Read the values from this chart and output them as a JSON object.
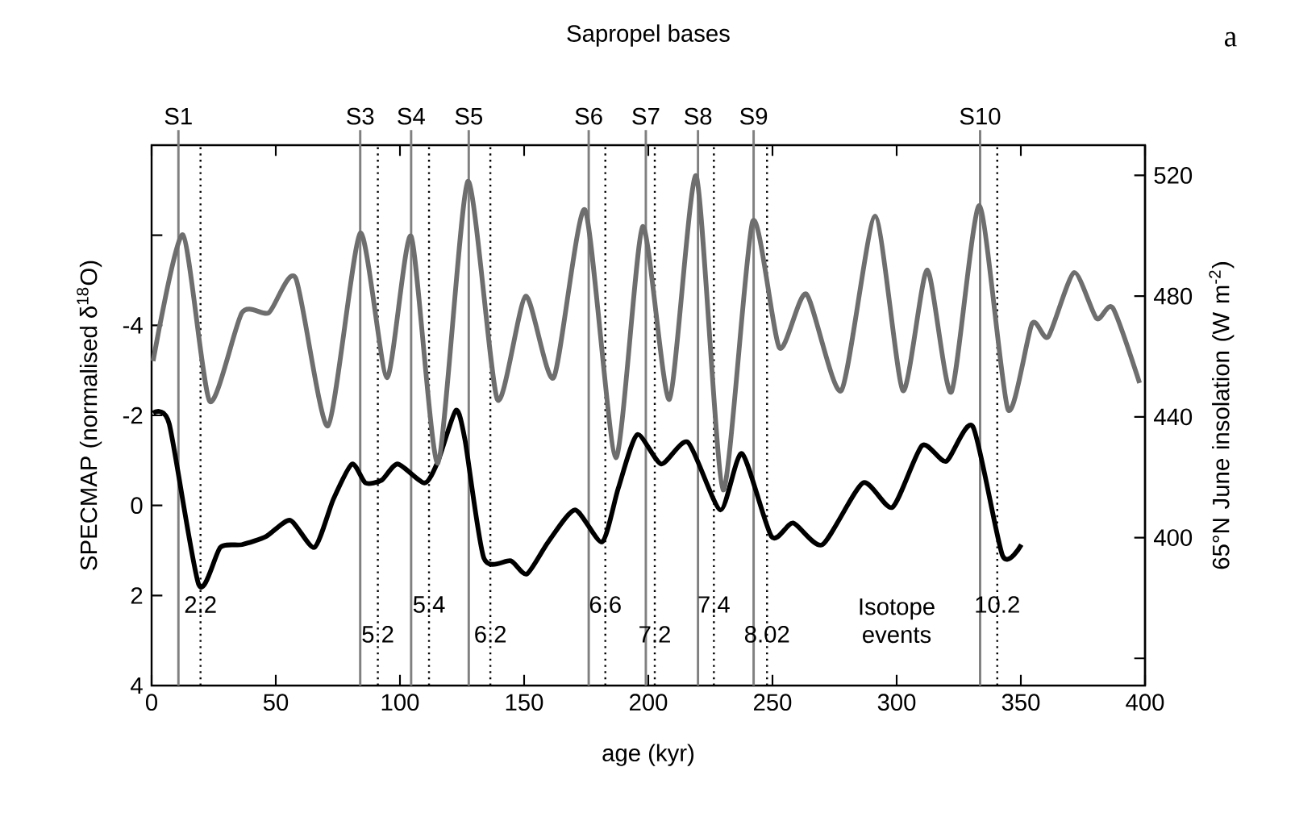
{
  "chart_data": {
    "type": "line",
    "xlabel": "age (kyr)",
    "ylabel": "SPECMAP (normalised δ$^{18}$O)",
    "y2label": "65°N June insolation (W m$^{-2}$)",
    "annotations": [
      "Sapropel bases",
      "a",
      "Isotope events",
      {
        "text": "2.2",
        "x": 19.7,
        "y": 2.2
      },
      {
        "text": "5.2",
        "x": 91.1,
        "y": 2.86
      },
      {
        "text": "5.4",
        "x": 111.7,
        "y": 2.2
      },
      {
        "text": "6.2",
        "x": 136.4,
        "y": 2.86
      },
      {
        "text": "6.6",
        "x": 182.7,
        "y": 2.2
      },
      {
        "text": "7.2",
        "x": 202.6,
        "y": 2.86
      },
      {
        "text": "7.4",
        "x": 226.4,
        "y": 2.2
      },
      {
        "text": "8.02",
        "x": 247.8,
        "y": 2.86
      },
      {
        "text": "10.2",
        "x": 340.5,
        "y": 2.2
      }
    ],
    "xlim": [
      0,
      400
    ],
    "xticks": [
      0,
      50,
      100,
      150,
      200,
      250,
      300,
      350,
      400
    ],
    "ylim": [
      4,
      -8
    ],
    "yticks": [
      {
        "value": -6,
        "label": null
      },
      -4,
      -2,
      0,
      2,
      4
    ],
    "y2lim": [
      351,
      530
    ],
    "y2ticks": [
      {
        "value": 360,
        "label": null
      },
      400,
      440,
      480,
      520
    ],
    "marker": "none",
    "series": [
      {
        "color": "#000000",
        "x": [
          0.6,
          7.1,
          19,
          27.7,
          36.4,
          46.1,
          55.8,
          65.6,
          73.2,
          80.7,
          86.1,
          92.6,
          99.1,
          109.9,
          115.3,
          122.5,
          126.2,
          133.8,
          144.6,
          151.1,
          159.7,
          170.5,
          181.4,
          187.9,
          195.5,
          205.2,
          216,
          229,
          237.7,
          249.6,
          258.3,
          270.1,
          286.4,
          298.3,
          310.2,
          319.9,
          330.7,
          342.6,
          350.2
        ],
        "values": [
          -2.05,
          -1.81,
          1.76,
          0.93,
          0.87,
          0.69,
          0.33,
          0.93,
          -0.14,
          -0.92,
          -0.5,
          -0.56,
          -0.92,
          -0.5,
          -0.98,
          -2.11,
          -1.45,
          1.17,
          1.23,
          1.52,
          0.81,
          0.1,
          0.81,
          -0.38,
          -1.57,
          -0.92,
          -1.4,
          0.1,
          -1.15,
          0.69,
          0.39,
          0.87,
          -0.5,
          0.04,
          -1.33,
          -0.98,
          -1.75,
          1.11,
          0.87
        ]
      },
      {
        "color": "#6e6e6e",
        "axis": "y2",
        "x": [
          0.6,
          12.6,
          23.4,
          36.4,
          47.2,
          58,
          71,
          84,
          94.8,
          104.5,
          115.3,
          127.3,
          139.2,
          150.6,
          161.9,
          174.5,
          186.9,
          197.7,
          208.5,
          219.3,
          230.1,
          242,
          252.8,
          263.6,
          277.7,
          291.3,
          302.5,
          312.3,
          322,
          333.3,
          344.8,
          354.5,
          361,
          371.4,
          380.5,
          387,
          397.8
        ],
        "values": [
          458.5,
          500.3,
          445.2,
          474.5,
          474.5,
          486,
          437,
          500.9,
          453,
          499.8,
          424.7,
          518,
          445.8,
          480,
          453,
          508.6,
          426.5,
          503,
          445.8,
          519.8,
          415.8,
          504.7,
          462.9,
          480.7,
          448.7,
          506.5,
          448.7,
          488.7,
          448.2,
          510,
          442.5,
          470.9,
          466.5,
          487.8,
          472.6,
          476.1,
          451.2
        ]
      }
    ],
    "ref_lines": [
      {
        "axis": "x",
        "value": 10.8,
        "label": "S1",
        "color": "#808080",
        "line_style": "solid"
      },
      {
        "axis": "x",
        "value": 84,
        "label": "S3",
        "color": "#808080",
        "line_style": "solid"
      },
      {
        "axis": "x",
        "value": 104.5,
        "label": "S4",
        "color": "#808080",
        "line_style": "solid"
      },
      {
        "axis": "x",
        "value": 127.7,
        "label": "S5",
        "color": "#808080",
        "line_style": "solid"
      },
      {
        "axis": "x",
        "value": 176,
        "label": "S6",
        "color": "#808080",
        "line_style": "solid"
      },
      {
        "axis": "x",
        "value": 199,
        "label": "S7",
        "color": "#808080",
        "line_style": "solid"
      },
      {
        "axis": "x",
        "value": 220,
        "label": "S8",
        "color": "#808080",
        "line_style": "solid"
      },
      {
        "axis": "x",
        "value": 242.4,
        "label": "S9",
        "color": "#808080",
        "line_style": "solid"
      },
      {
        "axis": "x",
        "value": 333.6,
        "label": "S10",
        "color": "#808080",
        "line_style": "solid"
      },
      {
        "axis": "x",
        "value": 19.7,
        "color": "#000000",
        "line_style": "dotted"
      },
      {
        "axis": "x",
        "value": 91.1,
        "color": "#000000",
        "line_style": "dotted"
      },
      {
        "axis": "x",
        "value": 111.7,
        "color": "#000000",
        "line_style": "dotted"
      },
      {
        "axis": "x",
        "value": 136.4,
        "color": "#000000",
        "line_style": "dotted"
      },
      {
        "axis": "x",
        "value": 182.7,
        "color": "#000000",
        "line_style": "dotted"
      },
      {
        "axis": "x",
        "value": 202.6,
        "color": "#000000",
        "line_style": "dotted"
      },
      {
        "axis": "x",
        "value": 226.4,
        "color": "#000000",
        "line_style": "dotted"
      },
      {
        "axis": "x",
        "value": 247.8,
        "color": "#000000",
        "line_style": "dotted"
      },
      {
        "axis": "x",
        "value": 340.5,
        "color": "#000000",
        "line_style": "dotted"
      }
    ]
  }
}
